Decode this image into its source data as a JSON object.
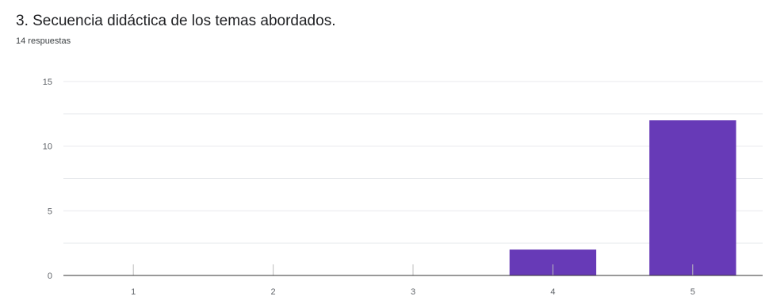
{
  "question": {
    "title": "3. Secuencia didáctica de los temas abordados.",
    "responses": "14 respuestas"
  },
  "colors": {
    "bar": "#673ab7",
    "grid": "#e8eaed",
    "axis": "#9e9e9e"
  },
  "chart_data": {
    "type": "bar",
    "categories": [
      "1",
      "2",
      "3",
      "4",
      "5"
    ],
    "values": [
      0,
      0,
      0,
      2,
      12
    ],
    "ylim": [
      0,
      15
    ],
    "yticks": [
      0,
      5,
      10,
      15
    ],
    "ytick_labels": [
      "0",
      "5",
      "10",
      "15"
    ],
    "grid": true,
    "title": "",
    "xlabel": "",
    "ylabel": ""
  }
}
